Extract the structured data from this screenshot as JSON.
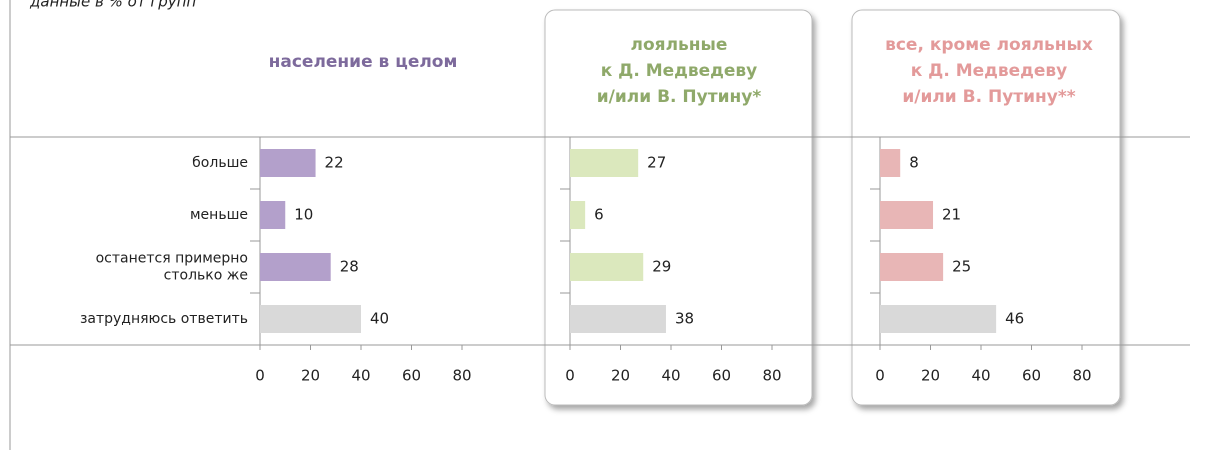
{
  "note": "данные в % от групп",
  "chart_data": [
    {
      "type": "bar",
      "title": [
        "население в целом"
      ],
      "title_color": "#7d6a9c",
      "categories": [
        "больше",
        "меньше",
        [
          "останется примерно",
          "столько же"
        ],
        "затрудняюсь ответить"
      ],
      "values": [
        22,
        10,
        28,
        40
      ],
      "colors": [
        "#b3a0cb",
        "#b3a0cb",
        "#b3a0cb",
        "#d9d9d9"
      ],
      "xlim": [
        0,
        80
      ],
      "xticks": [
        0,
        20,
        40,
        60,
        80
      ]
    },
    {
      "type": "bar",
      "title": [
        "лояльные",
        "к Д. Медведеву",
        "и/или В. Путину*"
      ],
      "title_color": "#8fa96a",
      "values": [
        27,
        6,
        29,
        38
      ],
      "colors": [
        "#dbe8bd",
        "#dbe8bd",
        "#dbe8bd",
        "#d9d9d9"
      ],
      "xlim": [
        0,
        80
      ],
      "xticks": [
        0,
        20,
        40,
        60,
        80
      ]
    },
    {
      "type": "bar",
      "title": [
        "все, кроме лояльных",
        "к Д. Медведеву",
        "и/или В. Путину**"
      ],
      "title_color": "#e39a9a",
      "values": [
        8,
        21,
        25,
        46
      ],
      "colors": [
        "#e8b6b6",
        "#e8b6b6",
        "#e8b6b6",
        "#d9d9d9"
      ],
      "xlim": [
        0,
        80
      ],
      "xticks": [
        0,
        20,
        40,
        60,
        80
      ]
    }
  ]
}
